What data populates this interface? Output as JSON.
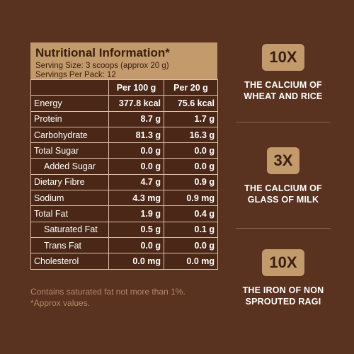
{
  "nutrition": {
    "title": "Nutritional Information*",
    "serving_size": "Serving Size: 3 scoops (approx 20 g)",
    "servings_per_pack": "Servings Per Pack: 12",
    "col_per100": "Per 100 g",
    "col_per20": "Per 20 g",
    "rows": [
      {
        "label": "Energy",
        "per100": "377.8 kcal",
        "per20": "75.6 kcal"
      },
      {
        "label": "Protein",
        "per100": "8.7 g",
        "per20": "1.7 g"
      },
      {
        "label": "Carbohydrate",
        "per100": "81.3 g",
        "per20": "16.3 g"
      },
      {
        "label": "Total Sugar",
        "per100": "0.0 g",
        "per20": "0.0 g"
      },
      {
        "label": "Added Sugar",
        "per100": "0.0 g",
        "per20": "0.0 g"
      },
      {
        "label": "Dietary Fibre",
        "per100": "4.7 g",
        "per20": "0.9 g"
      },
      {
        "label": "Sodium",
        "per100": "4.3 mg",
        "per20": "0.9 mg"
      },
      {
        "label": "Total Fat",
        "per100": "1.9 g",
        "per20": "0.4 g"
      },
      {
        "label": "Saturated Fat",
        "per100": "0.5 g",
        "per20": "0.1 g"
      },
      {
        "label": "Trans Fat",
        "per100": "0.0 g",
        "per20": "0.0 g"
      },
      {
        "label": "Cholesterol",
        "per100": "0.0 mg",
        "per20": "0.0 mg"
      }
    ],
    "footnote1": "Contains saturated fat not more than 1%.",
    "footnote2": "*Approx values."
  },
  "callouts": [
    {
      "badge": "10X",
      "line1": "THE CALCIUM OF",
      "line2": "WHEAT AND RICE"
    },
    {
      "badge": "3X",
      "line1": "THE CALCIUM OF",
      "line2": "GLASS OF MILK"
    },
    {
      "badge": "10X",
      "line1": "THE IRON OF NON",
      "line2": "SPROUTED RAGI"
    }
  ],
  "colors": {
    "background": "#5a3220",
    "accent": "#c39a6b",
    "text": "#ffffff"
  }
}
